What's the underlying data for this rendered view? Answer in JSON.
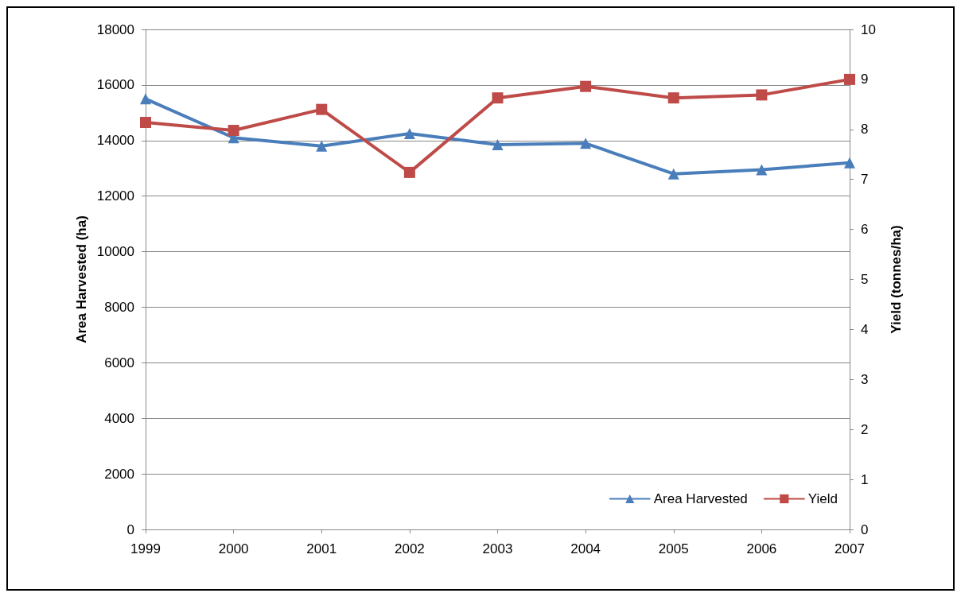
{
  "chart_data": {
    "type": "line",
    "categories": [
      "1999",
      "2000",
      "2001",
      "2002",
      "2003",
      "2004",
      "2005",
      "2006",
      "2007"
    ],
    "ylabel": "Area Harvested (ha)",
    "y2label": "Yield (tonnes/ha)",
    "ylim": [
      0,
      18000
    ],
    "yticks": [
      0,
      2000,
      4000,
      6000,
      8000,
      10000,
      12000,
      14000,
      16000,
      18000
    ],
    "y2lim": [
      0,
      10
    ],
    "y2ticks": [
      0,
      1,
      2,
      3,
      4,
      5,
      6,
      7,
      8,
      9,
      10
    ],
    "grid": "y",
    "legend": "bottom right",
    "series": [
      {
        "name": "Area Harvested",
        "color": "#4a7ebb",
        "marker": "triangle",
        "values": [
          15500,
          14100,
          13800,
          14250,
          13850,
          13900,
          12800,
          12950,
          13200
        ]
      },
      {
        "name": "Yield",
        "color": "#be4b48",
        "marker": "square",
        "axis": "y2",
        "values": [
          8.14,
          7.98,
          8.4,
          7.14,
          8.63,
          8.86,
          8.63,
          8.69,
          9.0
        ]
      }
    ]
  }
}
